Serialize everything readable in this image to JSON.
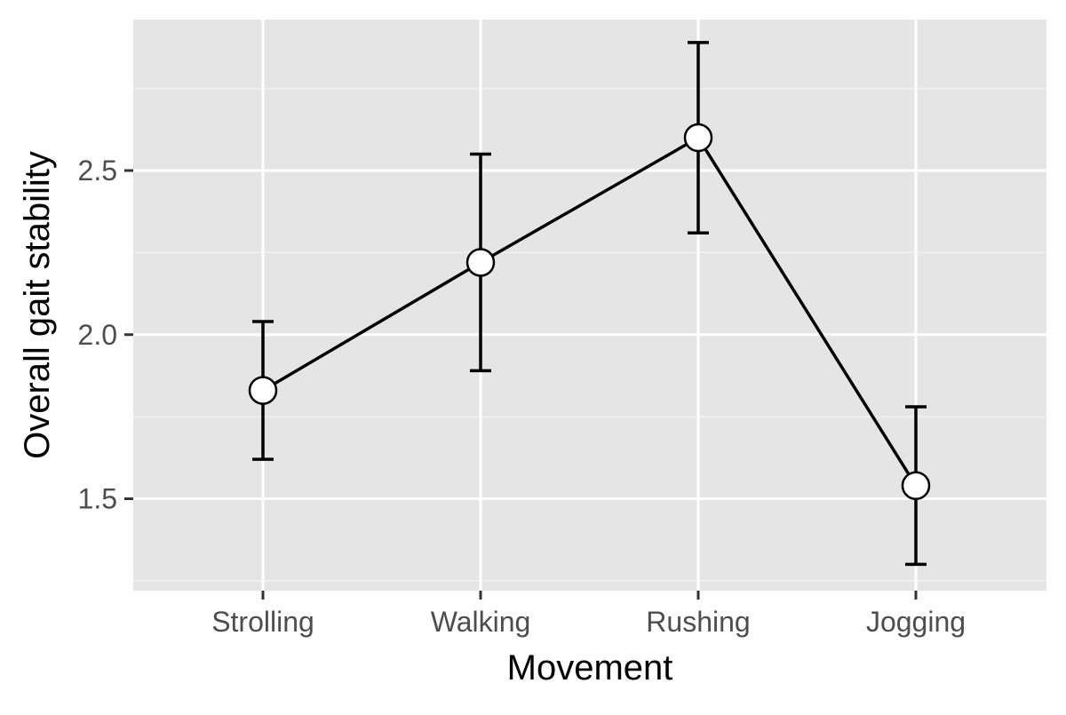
{
  "chart_data": {
    "type": "line",
    "title": "",
    "xlabel": "Movement",
    "ylabel": "Overall gait stability",
    "categories": [
      "Strolling",
      "Walking",
      "Rushing",
      "Jogging"
    ],
    "series": [
      {
        "values": [
          1.83,
          2.22,
          2.6,
          1.54
        ],
        "lower": [
          1.62,
          1.89,
          2.31,
          1.3
        ],
        "upper": [
          2.04,
          2.55,
          2.89,
          1.78
        ]
      }
    ],
    "ylim": [
      1.22,
      2.96
    ],
    "yticks": [
      1.5,
      2.0,
      2.5
    ],
    "ytick_labels": [
      "1.5",
      "2.0",
      "2.5"
    ],
    "grid": true,
    "legend": "none",
    "colors": {
      "panel_background": "#e5e5e5",
      "grid_major": "#ffffff",
      "grid_minor": "#f2f2f2",
      "line": "#000000",
      "point_fill": "#ffffff",
      "point_stroke": "#000000",
      "tick_text": "#4d4d4d",
      "tick_mark": "#333333"
    }
  }
}
